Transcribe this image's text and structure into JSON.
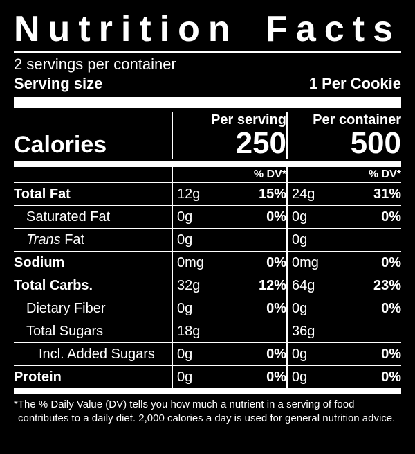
{
  "title": "Nutrition Facts",
  "servings_per_container": "2 servings per container",
  "serving_size_label": "Serving size",
  "serving_size_value": "1 Per Cookie",
  "calories_label": "Calories",
  "per_serving_label": "Per serving",
  "per_container_label": "Per container",
  "calories_per_serving": "250",
  "calories_per_container": "500",
  "dv_header": "% DV*",
  "nutrients": [
    {
      "name": "Total Fat",
      "bold": true,
      "indent": 0,
      "serv_amt": "12g",
      "serv_dv": "15%",
      "cont_amt": "24g",
      "cont_dv": "31%"
    },
    {
      "name": "Saturated Fat",
      "bold": false,
      "indent": 1,
      "serv_amt": "0g",
      "serv_dv": "0%",
      "cont_amt": "0g",
      "cont_dv": "0%"
    },
    {
      "name_html": "<span class='italic'>Trans</span> Fat",
      "bold": false,
      "indent": 1,
      "serv_amt": "0g",
      "serv_dv": "",
      "cont_amt": "0g",
      "cont_dv": ""
    },
    {
      "name": "Sodium",
      "bold": true,
      "indent": 0,
      "serv_amt": "0mg",
      "serv_dv": "0%",
      "cont_amt": "0mg",
      "cont_dv": "0%"
    },
    {
      "name": "Total Carbs.",
      "bold": true,
      "indent": 0,
      "serv_amt": "32g",
      "serv_dv": "12%",
      "cont_amt": "64g",
      "cont_dv": "23%"
    },
    {
      "name": "Dietary Fiber",
      "bold": false,
      "indent": 1,
      "serv_amt": "0g",
      "serv_dv": "0%",
      "cont_amt": "0g",
      "cont_dv": "0%"
    },
    {
      "name": "Total Sugars",
      "bold": false,
      "indent": 1,
      "serv_amt": "18g",
      "serv_dv": "",
      "cont_amt": "36g",
      "cont_dv": ""
    },
    {
      "name": "Incl. Added Sugars",
      "bold": false,
      "indent": 2,
      "serv_amt": "0g",
      "serv_dv": "0%",
      "cont_amt": "0g",
      "cont_dv": "0%"
    },
    {
      "name": "Protein",
      "bold": true,
      "indent": 0,
      "serv_amt": "0g",
      "serv_dv": "0%",
      "cont_amt": "0g",
      "cont_dv": "0%"
    }
  ],
  "footnote": "*The % Daily Value (DV) tells you how much a nutrient in a serving of food contributes to a daily diet. 2,000 calories a day is used for general nutrition advice.",
  "colors": {
    "background": "#000000",
    "text": "#ffffff",
    "rule": "#ffffff"
  }
}
